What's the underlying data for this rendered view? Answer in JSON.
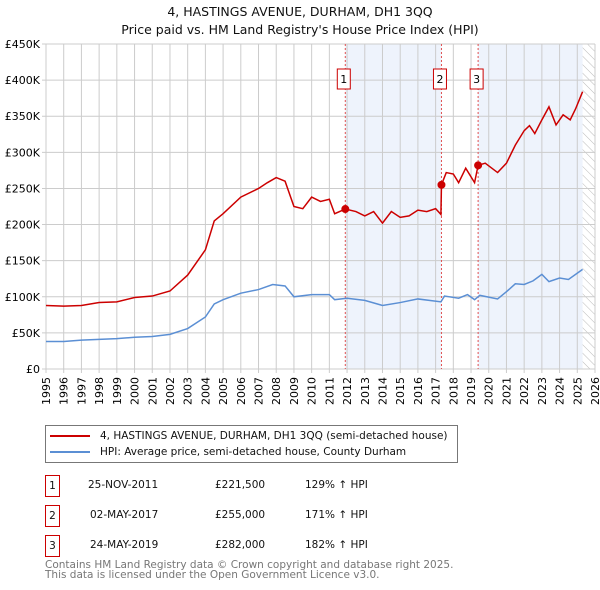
{
  "chart_data": {
    "type": "line",
    "title": "4, HASTINGS AVENUE, DURHAM, DH1 3QQ",
    "subtitle": "Price paid vs. HM Land Registry's House Price Index (HPI)",
    "xlim": [
      1995,
      2026
    ],
    "ylim": [
      0,
      450000
    ],
    "x_ticks": [
      "1995",
      "1996",
      "1997",
      "1998",
      "1999",
      "2000",
      "2001",
      "2002",
      "2003",
      "2004",
      "2005",
      "2006",
      "2007",
      "2008",
      "2009",
      "2010",
      "2011",
      "2012",
      "2013",
      "2014",
      "2015",
      "2016",
      "2017",
      "2018",
      "2019",
      "2020",
      "2021",
      "2022",
      "2023",
      "2024",
      "2025",
      "2026"
    ],
    "y_ticks": [
      {
        "v": 0,
        "label": "£0"
      },
      {
        "v": 50000,
        "label": "£50K"
      },
      {
        "v": 100000,
        "label": "£100K"
      },
      {
        "v": 150000,
        "label": "£150K"
      },
      {
        "v": 200000,
        "label": "£200K"
      },
      {
        "v": 250000,
        "label": "£250K"
      },
      {
        "v": 300000,
        "label": "£300K"
      },
      {
        "v": 350000,
        "label": "£350K"
      },
      {
        "v": 400000,
        "label": "£400K"
      },
      {
        "v": 450000,
        "label": "£450K"
      }
    ],
    "grid": true,
    "series": [
      {
        "name": "4, HASTINGS AVENUE, DURHAM, DH1 3QQ (semi-detached house)",
        "color": "#cc0000",
        "points": [
          [
            1995,
            88000
          ],
          [
            1996,
            87000
          ],
          [
            1997,
            88000
          ],
          [
            1998,
            92000
          ],
          [
            1999,
            93000
          ],
          [
            2000,
            99000
          ],
          [
            2001,
            101000
          ],
          [
            2002,
            108000
          ],
          [
            2003,
            130000
          ],
          [
            2004,
            165000
          ],
          [
            2004.5,
            205000
          ],
          [
            2005,
            215000
          ],
          [
            2006,
            238000
          ],
          [
            2007,
            250000
          ],
          [
            2007.5,
            258000
          ],
          [
            2008,
            265000
          ],
          [
            2008.5,
            260000
          ],
          [
            2009,
            225000
          ],
          [
            2009.5,
            222000
          ],
          [
            2010,
            238000
          ],
          [
            2010.5,
            232000
          ],
          [
            2011,
            235000
          ],
          [
            2011.3,
            215000
          ],
          [
            2011.9,
            221500
          ],
          [
            2012.5,
            218000
          ],
          [
            2013,
            212000
          ],
          [
            2013.5,
            218000
          ],
          [
            2014,
            202000
          ],
          [
            2014.5,
            218000
          ],
          [
            2015,
            210000
          ],
          [
            2015.5,
            212000
          ],
          [
            2016,
            220000
          ],
          [
            2016.5,
            218000
          ],
          [
            2017,
            222000
          ],
          [
            2017.3,
            214000
          ],
          [
            2017.33,
            255000
          ],
          [
            2017.6,
            272000
          ],
          [
            2018,
            270000
          ],
          [
            2018.3,
            258000
          ],
          [
            2018.7,
            278000
          ],
          [
            2019.2,
            258000
          ],
          [
            2019.4,
            282000
          ],
          [
            2019.8,
            285000
          ],
          [
            2020.5,
            272000
          ],
          [
            2021,
            285000
          ],
          [
            2021.5,
            310000
          ],
          [
            2022,
            330000
          ],
          [
            2022.3,
            337000
          ],
          [
            2022.6,
            326000
          ],
          [
            2023,
            345000
          ],
          [
            2023.4,
            363000
          ],
          [
            2023.8,
            338000
          ],
          [
            2024.2,
            352000
          ],
          [
            2024.6,
            345000
          ],
          [
            2024.9,
            360000
          ],
          [
            2025.3,
            384000
          ]
        ]
      },
      {
        "name": "HPI: Average price, semi-detached house, County Durham",
        "color": "#5b8fd4",
        "points": [
          [
            1995,
            38000
          ],
          [
            1996,
            38000
          ],
          [
            1997,
            40000
          ],
          [
            1998,
            41000
          ],
          [
            1999,
            42000
          ],
          [
            2000,
            44000
          ],
          [
            2001,
            45000
          ],
          [
            2002,
            48000
          ],
          [
            2003,
            56000
          ],
          [
            2004,
            72000
          ],
          [
            2004.5,
            90000
          ],
          [
            2005,
            96000
          ],
          [
            2006,
            105000
          ],
          [
            2007,
            110000
          ],
          [
            2007.8,
            117000
          ],
          [
            2008.5,
            115000
          ],
          [
            2009,
            100000
          ],
          [
            2010,
            103000
          ],
          [
            2011,
            103000
          ],
          [
            2011.3,
            96000
          ],
          [
            2012,
            98000
          ],
          [
            2013,
            95000
          ],
          [
            2014,
            88000
          ],
          [
            2015,
            92000
          ],
          [
            2016,
            97000
          ],
          [
            2017.3,
            93000
          ],
          [
            2017.5,
            101000
          ],
          [
            2018.3,
            98000
          ],
          [
            2018.8,
            103000
          ],
          [
            2019.2,
            96000
          ],
          [
            2019.5,
            102000
          ],
          [
            2020.5,
            97000
          ],
          [
            2021,
            107000
          ],
          [
            2021.5,
            118000
          ],
          [
            2022,
            117000
          ],
          [
            2022.5,
            122000
          ],
          [
            2023,
            131000
          ],
          [
            2023.4,
            121000
          ],
          [
            2024,
            126000
          ],
          [
            2024.5,
            124000
          ],
          [
            2025.3,
            138000
          ]
        ]
      }
    ],
    "shaded_ranges": [
      [
        2011.9,
        2017.33
      ],
      [
        2019.4,
        2025.3
      ]
    ],
    "hatched_from": 2025.3,
    "sales": [
      {
        "id": "1",
        "x": 2011.9,
        "value": 221500
      },
      {
        "id": "2",
        "x": 2017.33,
        "value": 255000
      },
      {
        "id": "3",
        "x": 2019.4,
        "value": 282000
      }
    ],
    "legend": "below"
  },
  "table": [
    {
      "id": "1",
      "date": "25-NOV-2011",
      "price": "£221,500",
      "hpi": "129% ↑ HPI"
    },
    {
      "id": "2",
      "date": "02-MAY-2017",
      "price": "£255,000",
      "hpi": "171% ↑ HPI"
    },
    {
      "id": "3",
      "date": "24-MAY-2019",
      "price": "£282,000",
      "hpi": "182% ↑ HPI"
    }
  ],
  "footer": {
    "line1": "Contains HM Land Registry data © Crown copyright and database right 2025.",
    "line2": "This data is licensed under the Open Government Licence v3.0."
  }
}
